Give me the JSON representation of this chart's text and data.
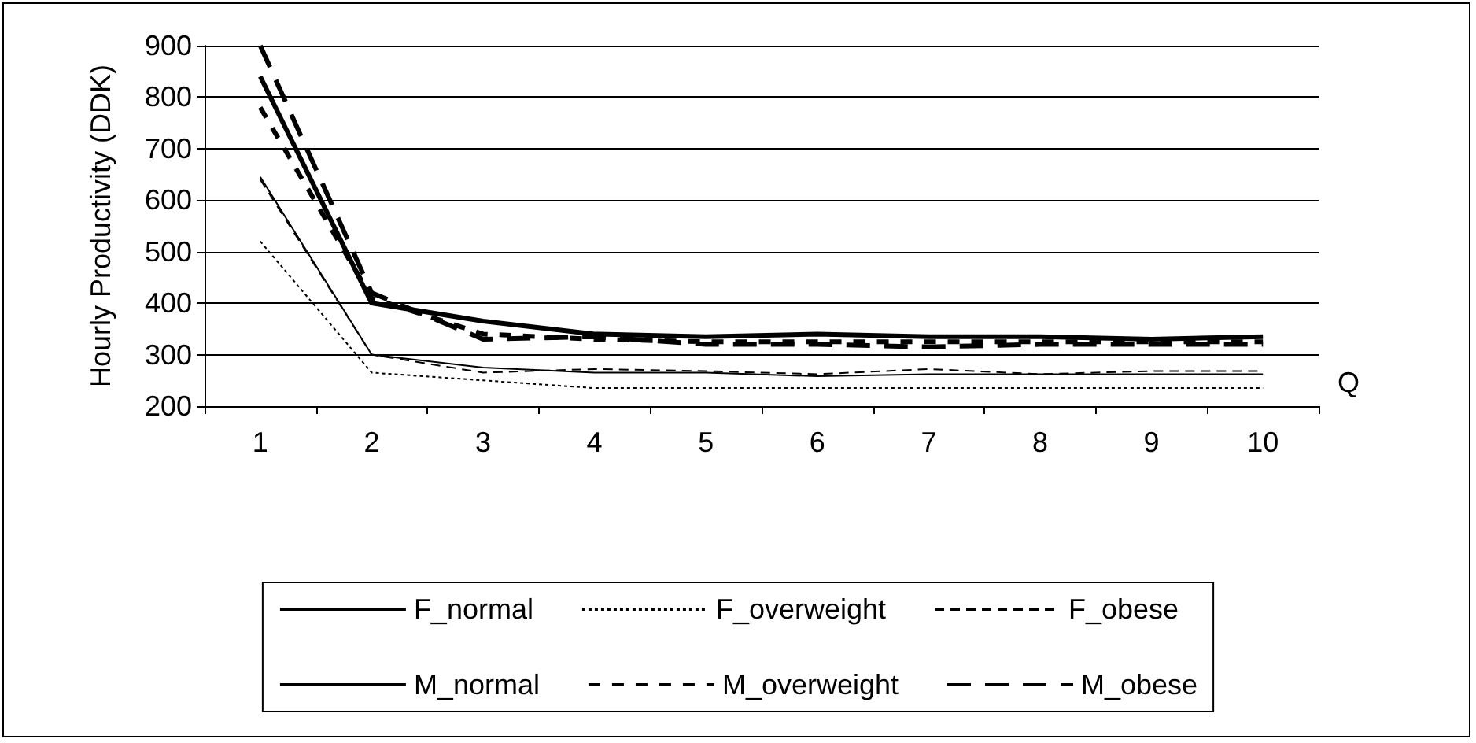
{
  "chart_data": {
    "type": "line",
    "ylabel": "Hourly Productivity (DDK)",
    "xlabel": "Q",
    "categories": [
      "1",
      "2",
      "3",
      "4",
      "5",
      "6",
      "7",
      "8",
      "9",
      "10"
    ],
    "ylim": [
      200,
      900
    ],
    "yticks": [
      200,
      300,
      400,
      500,
      600,
      700,
      800,
      900
    ],
    "grid": "y",
    "legend": "bottom",
    "marker": "none",
    "series": [
      {
        "name": "F_normal",
        "color": "#000000",
        "line_style": "solid",
        "values": [
          645,
          300,
          275,
          265,
          265,
          258,
          262,
          262,
          262,
          262
        ]
      },
      {
        "name": "F_overweight",
        "color": "#000000",
        "line_style": "dotted",
        "values": [
          520,
          265,
          250,
          235,
          235,
          235,
          235,
          235,
          235,
          235
        ]
      },
      {
        "name": "F_obese",
        "color": "#000000",
        "line_style": "dashed",
        "values": [
          640,
          300,
          265,
          272,
          268,
          262,
          272,
          262,
          268,
          268
        ]
      },
      {
        "name": "M_normal",
        "color": "#000000",
        "line_style": "solid",
        "values": [
          840,
          400,
          365,
          340,
          335,
          340,
          335,
          335,
          330,
          335
        ]
      },
      {
        "name": "M_overweight",
        "color": "#000000",
        "line_style": "dashed",
        "values": [
          780,
          410,
          340,
          330,
          325,
          325,
          325,
          325,
          325,
          325
        ]
      },
      {
        "name": "M_obese",
        "color": "#000000",
        "line_style": "dashed",
        "values": [
          900,
          420,
          330,
          335,
          320,
          320,
          315,
          320,
          320,
          320
        ]
      }
    ]
  }
}
